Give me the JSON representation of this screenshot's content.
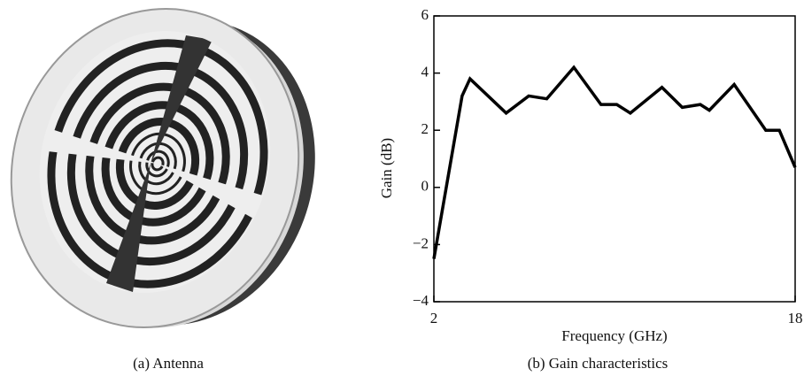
{
  "caption_a": "(a)  Antenna",
  "chart_data": {
    "type": "line",
    "caption": "(b)  Gain characteristics",
    "x_label": "Frequency (GHz)",
    "y_label": "Gain (dB)",
    "x": [
      2,
      3.25,
      3.6,
      5.2,
      6.2,
      7.0,
      8.2,
      9.4,
      10.1,
      10.7,
      12.1,
      13.0,
      13.8,
      14.2,
      15.3,
      16.7,
      17.3,
      18
    ],
    "series": [
      {
        "color": "#000000",
        "values": [
          -2.5,
          3.2,
          3.8,
          2.6,
          3.2,
          3.1,
          4.2,
          2.9,
          2.9,
          2.6,
          3.5,
          2.8,
          2.9,
          2.7,
          3.6,
          2.0,
          2.0,
          0.7
        ]
      }
    ],
    "xlim": [
      2,
      18
    ],
    "xticks": [
      2,
      18
    ],
    "ylim": [
      -4,
      6
    ],
    "yticks": [
      {
        "value": -4,
        "label": "−4"
      },
      {
        "value": -2,
        "label": "−2"
      },
      0,
      2,
      4,
      6
    ]
  }
}
